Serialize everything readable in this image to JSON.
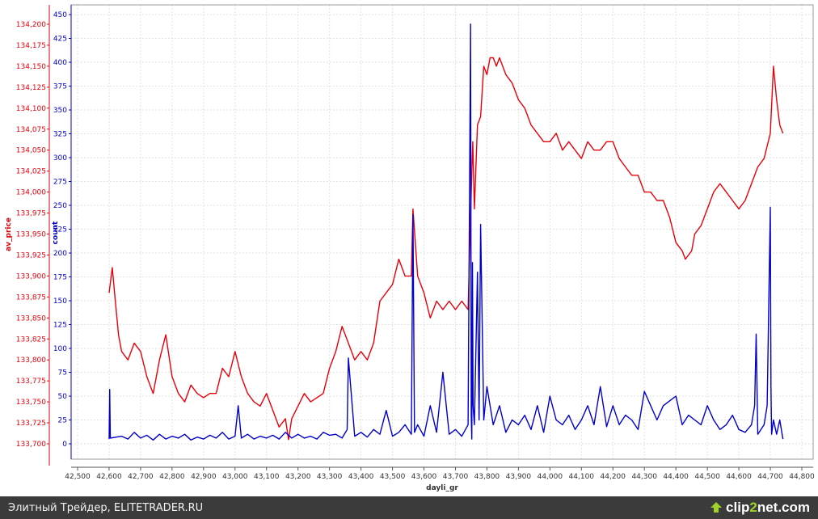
{
  "chart_data": {
    "type": "line",
    "xlabel": "dayli_gr",
    "x_ticks": [
      "42,500",
      "42,600",
      "42,700",
      "42,800",
      "42,900",
      "43,000",
      "43,100",
      "43,200",
      "43,300",
      "43,400",
      "43,500",
      "43,600",
      "43,700",
      "43,800",
      "43,900",
      "44,000",
      "44,100",
      "44,200",
      "44,300",
      "44,400",
      "44,500",
      "44,600",
      "44,700",
      "44,800"
    ],
    "xlim": [
      42500,
      44800
    ],
    "y_left": {
      "label": "av_price",
      "ticks": [
        "133,700",
        "133,725",
        "133,750",
        "133,775",
        "133,800",
        "133,825",
        "133,850",
        "133,875",
        "133,900",
        "133,925",
        "133,950",
        "133,975",
        "134,000",
        "134,025",
        "134,050",
        "134,075",
        "134,100",
        "134,125",
        "134,150",
        "134,175",
        "134,200"
      ],
      "lim": [
        133700,
        134200
      ],
      "color": "#e8000b"
    },
    "y_right": {
      "label": "count",
      "ticks": [
        "0",
        "25",
        "50",
        "75",
        "100",
        "125",
        "150",
        "175",
        "200",
        "225",
        "250",
        "275",
        "300",
        "325",
        "350",
        "375",
        "400",
        "425",
        "450"
      ],
      "lim": [
        0,
        450
      ],
      "color": "#0000cc"
    },
    "grid": true,
    "series": [
      {
        "axis": "left",
        "color": "#e8000b",
        "x": [
          42600,
          42610,
          42620,
          42630,
          42640,
          42660,
          42680,
          42700,
          42720,
          42740,
          42760,
          42780,
          42800,
          42820,
          42840,
          42860,
          42880,
          42900,
          42920,
          42940,
          42960,
          42980,
          43000,
          43020,
          43040,
          43060,
          43080,
          43100,
          43120,
          43140,
          43160,
          43170,
          43180,
          43200,
          43220,
          43240,
          43260,
          43280,
          43300,
          43320,
          43340,
          43360,
          43380,
          43400,
          43420,
          43440,
          43460,
          43480,
          43500,
          43520,
          43540,
          43560,
          43565,
          43580,
          43600,
          43620,
          43640,
          43660,
          43680,
          43700,
          43720,
          43740,
          43750,
          43755,
          43760,
          43770,
          43780,
          43790,
          43800,
          43810,
          43820,
          43830,
          43840,
          43850,
          43860,
          43880,
          43900,
          43920,
          43940,
          43960,
          43980,
          44000,
          44020,
          44040,
          44060,
          44080,
          44100,
          44120,
          44140,
          44160,
          44180,
          44200,
          44220,
          44240,
          44260,
          44280,
          44300,
          44320,
          44340,
          44360,
          44380,
          44400,
          44420,
          44430,
          44440,
          44450,
          44460,
          44480,
          44500,
          44520,
          44540,
          44560,
          44580,
          44600,
          44620,
          44640,
          44660,
          44680,
          44700,
          44710,
          44720,
          44730,
          44740
        ],
        "y": [
          133880,
          133910,
          133870,
          133830,
          133810,
          133800,
          133820,
          133810,
          133780,
          133760,
          133800,
          133830,
          133780,
          133760,
          133750,
          133770,
          133760,
          133755,
          133760,
          133760,
          133790,
          133780,
          133810,
          133780,
          133760,
          133750,
          133745,
          133760,
          133740,
          133720,
          133730,
          133705,
          133730,
          133745,
          133760,
          133750,
          133755,
          133760,
          133790,
          133810,
          133840,
          133820,
          133800,
          133810,
          133800,
          133820,
          133870,
          133880,
          133890,
          133920,
          133900,
          133900,
          133980,
          133900,
          133880,
          133850,
          133870,
          133860,
          133870,
          133860,
          133870,
          133860,
          134000,
          134060,
          133980,
          134080,
          134090,
          134150,
          134140,
          134160,
          134160,
          134150,
          134160,
          134150,
          134140,
          134130,
          134110,
          134100,
          134080,
          134070,
          134060,
          134060,
          134070,
          134050,
          134060,
          134050,
          134040,
          134060,
          134050,
          134050,
          134060,
          134060,
          134040,
          134030,
          134020,
          134020,
          134000,
          134000,
          133990,
          133990,
          133970,
          133940,
          133930,
          133920,
          133925,
          133930,
          133950,
          133960,
          133980,
          134000,
          134010,
          134000,
          133990,
          133980,
          133990,
          134010,
          134030,
          134040,
          134070,
          134150,
          134110,
          134080,
          134070
        ]
      },
      {
        "axis": "right",
        "color": "#0000cc",
        "x": [
          42600,
          42602,
          42604,
          42640,
          42660,
          42680,
          42700,
          42720,
          42740,
          42760,
          42780,
          42800,
          42820,
          42840,
          42860,
          42880,
          42900,
          42920,
          42940,
          42960,
          42980,
          43000,
          43010,
          43020,
          43040,
          43060,
          43080,
          43100,
          43120,
          43140,
          43160,
          43180,
          43200,
          43220,
          43240,
          43260,
          43280,
          43300,
          43320,
          43340,
          43356,
          43360,
          43380,
          43400,
          43420,
          43440,
          43460,
          43480,
          43500,
          43520,
          43540,
          43560,
          43565,
          43570,
          43580,
          43600,
          43620,
          43640,
          43660,
          43680,
          43700,
          43720,
          43740,
          43748,
          43750,
          43752,
          43754,
          43756,
          43760,
          43770,
          43775,
          43780,
          43790,
          43800,
          43820,
          43840,
          43860,
          43880,
          43900,
          43920,
          43940,
          43960,
          43980,
          44000,
          44020,
          44040,
          44060,
          44080,
          44100,
          44120,
          44140,
          44160,
          44180,
          44200,
          44220,
          44240,
          44260,
          44280,
          44300,
          44320,
          44340,
          44360,
          44380,
          44400,
          44420,
          44440,
          44460,
          44480,
          44500,
          44520,
          44540,
          44560,
          44580,
          44600,
          44620,
          44640,
          44650,
          44655,
          44660,
          44680,
          44690,
          44700,
          44702,
          44704,
          44710,
          44720,
          44730,
          44740
        ],
        "y": [
          5,
          57,
          6,
          8,
          5,
          12,
          6,
          9,
          4,
          10,
          5,
          8,
          6,
          10,
          4,
          7,
          5,
          9,
          6,
          12,
          5,
          8,
          40,
          6,
          10,
          5,
          8,
          6,
          9,
          5,
          12,
          6,
          10,
          6,
          8,
          5,
          12,
          9,
          10,
          6,
          15,
          90,
          8,
          12,
          7,
          15,
          10,
          35,
          8,
          12,
          20,
          10,
          240,
          12,
          20,
          8,
          40,
          12,
          75,
          10,
          15,
          8,
          20,
          440,
          30,
          5,
          190,
          40,
          20,
          180,
          25,
          230,
          25,
          60,
          20,
          40,
          12,
          25,
          20,
          30,
          15,
          40,
          12,
          50,
          25,
          20,
          30,
          15,
          25,
          40,
          20,
          60,
          18,
          40,
          20,
          30,
          25,
          15,
          55,
          40,
          25,
          40,
          45,
          50,
          20,
          30,
          25,
          20,
          40,
          25,
          15,
          20,
          30,
          15,
          12,
          20,
          40,
          115,
          10,
          20,
          40,
          248,
          60,
          10,
          25,
          10,
          25,
          5
        ]
      }
    ]
  },
  "footer": {
    "site": "Элитный Трейдер, ELITETRADER.RU",
    "brand_a": "clip",
    "brand_b": "2",
    "brand_c": "net",
    "brand_d": ".com"
  }
}
